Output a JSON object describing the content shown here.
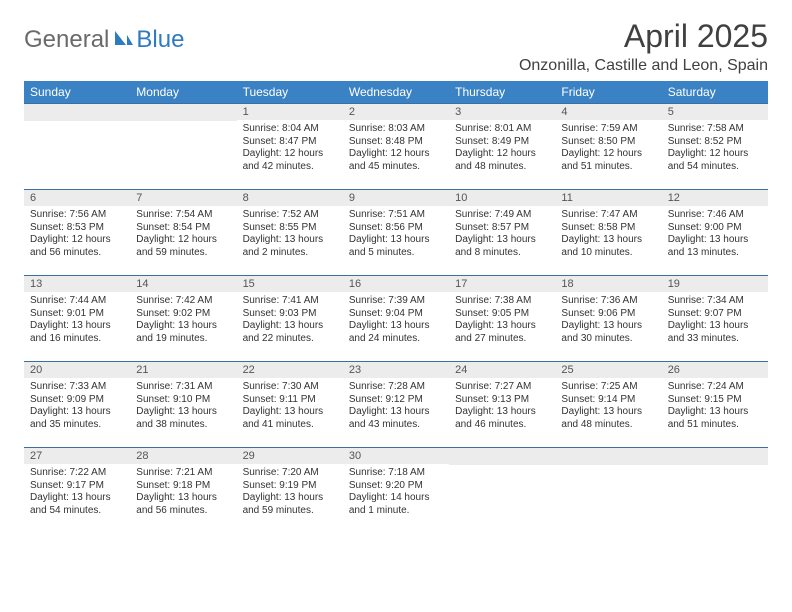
{
  "logo": {
    "text1": "General",
    "text2": "Blue"
  },
  "title": "April 2025",
  "location": "Onzonilla, Castille and Leon, Spain",
  "colors": {
    "header_bg": "#3b82c4",
    "header_text": "#ffffff",
    "row_border": "#3b6fa0",
    "daynum_bg": "#ececec",
    "body_text": "#333333",
    "logo_gray": "#6a6a6a",
    "logo_blue": "#2f7bbf"
  },
  "weekdays": [
    "Sunday",
    "Monday",
    "Tuesday",
    "Wednesday",
    "Thursday",
    "Friday",
    "Saturday"
  ],
  "weeks": [
    [
      null,
      null,
      {
        "n": "1",
        "sunrise": "8:04 AM",
        "sunset": "8:47 PM",
        "daylight": "12 hours and 42 minutes."
      },
      {
        "n": "2",
        "sunrise": "8:03 AM",
        "sunset": "8:48 PM",
        "daylight": "12 hours and 45 minutes."
      },
      {
        "n": "3",
        "sunrise": "8:01 AM",
        "sunset": "8:49 PM",
        "daylight": "12 hours and 48 minutes."
      },
      {
        "n": "4",
        "sunrise": "7:59 AM",
        "sunset": "8:50 PM",
        "daylight": "12 hours and 51 minutes."
      },
      {
        "n": "5",
        "sunrise": "7:58 AM",
        "sunset": "8:52 PM",
        "daylight": "12 hours and 54 minutes."
      }
    ],
    [
      {
        "n": "6",
        "sunrise": "7:56 AM",
        "sunset": "8:53 PM",
        "daylight": "12 hours and 56 minutes."
      },
      {
        "n": "7",
        "sunrise": "7:54 AM",
        "sunset": "8:54 PM",
        "daylight": "12 hours and 59 minutes."
      },
      {
        "n": "8",
        "sunrise": "7:52 AM",
        "sunset": "8:55 PM",
        "daylight": "13 hours and 2 minutes."
      },
      {
        "n": "9",
        "sunrise": "7:51 AM",
        "sunset": "8:56 PM",
        "daylight": "13 hours and 5 minutes."
      },
      {
        "n": "10",
        "sunrise": "7:49 AM",
        "sunset": "8:57 PM",
        "daylight": "13 hours and 8 minutes."
      },
      {
        "n": "11",
        "sunrise": "7:47 AM",
        "sunset": "8:58 PM",
        "daylight": "13 hours and 10 minutes."
      },
      {
        "n": "12",
        "sunrise": "7:46 AM",
        "sunset": "9:00 PM",
        "daylight": "13 hours and 13 minutes."
      }
    ],
    [
      {
        "n": "13",
        "sunrise": "7:44 AM",
        "sunset": "9:01 PM",
        "daylight": "13 hours and 16 minutes."
      },
      {
        "n": "14",
        "sunrise": "7:42 AM",
        "sunset": "9:02 PM",
        "daylight": "13 hours and 19 minutes."
      },
      {
        "n": "15",
        "sunrise": "7:41 AM",
        "sunset": "9:03 PM",
        "daylight": "13 hours and 22 minutes."
      },
      {
        "n": "16",
        "sunrise": "7:39 AM",
        "sunset": "9:04 PM",
        "daylight": "13 hours and 24 minutes."
      },
      {
        "n": "17",
        "sunrise": "7:38 AM",
        "sunset": "9:05 PM",
        "daylight": "13 hours and 27 minutes."
      },
      {
        "n": "18",
        "sunrise": "7:36 AM",
        "sunset": "9:06 PM",
        "daylight": "13 hours and 30 minutes."
      },
      {
        "n": "19",
        "sunrise": "7:34 AM",
        "sunset": "9:07 PM",
        "daylight": "13 hours and 33 minutes."
      }
    ],
    [
      {
        "n": "20",
        "sunrise": "7:33 AM",
        "sunset": "9:09 PM",
        "daylight": "13 hours and 35 minutes."
      },
      {
        "n": "21",
        "sunrise": "7:31 AM",
        "sunset": "9:10 PM",
        "daylight": "13 hours and 38 minutes."
      },
      {
        "n": "22",
        "sunrise": "7:30 AM",
        "sunset": "9:11 PM",
        "daylight": "13 hours and 41 minutes."
      },
      {
        "n": "23",
        "sunrise": "7:28 AM",
        "sunset": "9:12 PM",
        "daylight": "13 hours and 43 minutes."
      },
      {
        "n": "24",
        "sunrise": "7:27 AM",
        "sunset": "9:13 PM",
        "daylight": "13 hours and 46 minutes."
      },
      {
        "n": "25",
        "sunrise": "7:25 AM",
        "sunset": "9:14 PM",
        "daylight": "13 hours and 48 minutes."
      },
      {
        "n": "26",
        "sunrise": "7:24 AM",
        "sunset": "9:15 PM",
        "daylight": "13 hours and 51 minutes."
      }
    ],
    [
      {
        "n": "27",
        "sunrise": "7:22 AM",
        "sunset": "9:17 PM",
        "daylight": "13 hours and 54 minutes."
      },
      {
        "n": "28",
        "sunrise": "7:21 AM",
        "sunset": "9:18 PM",
        "daylight": "13 hours and 56 minutes."
      },
      {
        "n": "29",
        "sunrise": "7:20 AM",
        "sunset": "9:19 PM",
        "daylight": "13 hours and 59 minutes."
      },
      {
        "n": "30",
        "sunrise": "7:18 AM",
        "sunset": "9:20 PM",
        "daylight": "14 hours and 1 minute."
      },
      null,
      null,
      null
    ]
  ],
  "labels": {
    "sunrise": "Sunrise:",
    "sunset": "Sunset:",
    "daylight": "Daylight:"
  }
}
